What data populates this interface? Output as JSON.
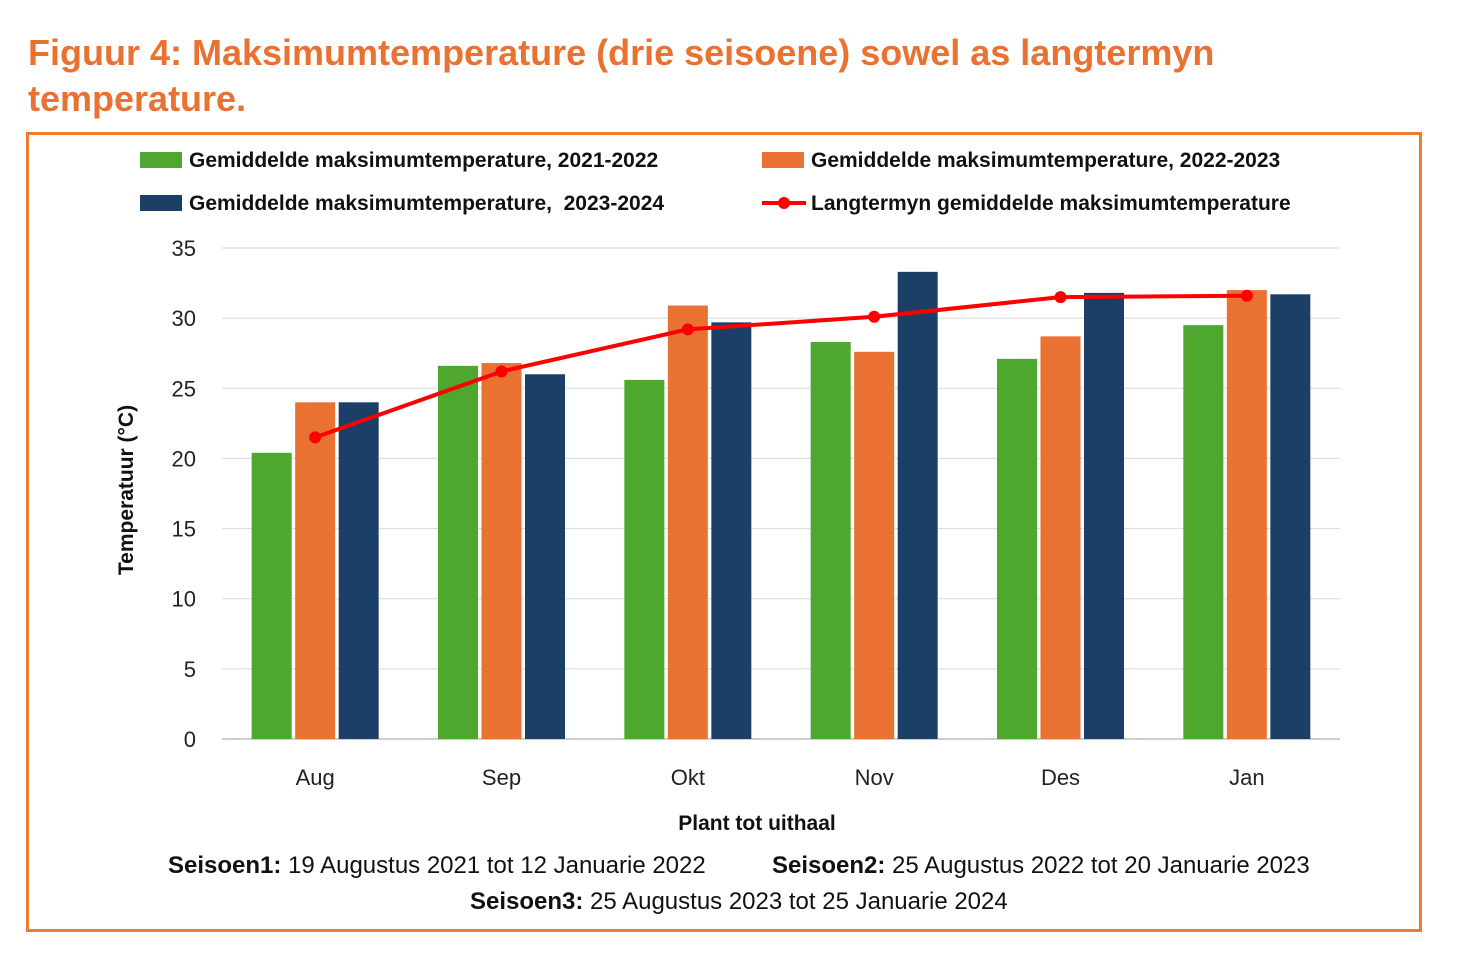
{
  "figure": {
    "title": "Figuur 4: Maksimumtemperature (drie seisoene) sowel as langtermyn temperature."
  },
  "chart_data": {
    "type": "bar",
    "categories": [
      "Aug",
      "Sep",
      "Okt",
      "Nov",
      "Des",
      "Jan"
    ],
    "series": [
      {
        "name": "Gemiddelde maksimumtemperature, 2021-2022",
        "kind": "bar",
        "color": "#4ea72e",
        "values": [
          20.4,
          26.6,
          25.6,
          28.3,
          27.1,
          29.5
        ]
      },
      {
        "name": "Gemiddelde maksimumtemperature, 2022-2023",
        "kind": "bar",
        "color": "#e97132",
        "values": [
          24.0,
          26.8,
          30.9,
          27.6,
          28.7,
          32.0
        ]
      },
      {
        "name": "Gemiddelde maksimumtemperature,  2023-2024",
        "kind": "bar",
        "color": "#1b3f66",
        "values": [
          24.0,
          26.0,
          29.7,
          33.3,
          31.8,
          31.7
        ]
      },
      {
        "name": "Langtermyn gemiddelde maksimumtemperature",
        "kind": "line",
        "color": "#ff0000",
        "values": [
          21.5,
          26.2,
          29.2,
          30.1,
          31.5,
          31.6
        ]
      }
    ],
    "ylabel": "Temperatuur (°C)",
    "xlabel": "Plant tot uithaal",
    "ylim": [
      0,
      35
    ],
    "yticks": [
      0,
      5,
      10,
      15,
      20,
      25,
      30,
      35
    ],
    "grid": true,
    "legend_position": "top"
  },
  "seasons": [
    {
      "label": "Seisoen1:",
      "text": " 19 Augustus 2021 tot 12 Januarie 2022"
    },
    {
      "label": "Seisoen2:",
      "text": " 25 Augustus 2022 tot 20 Januarie 2023"
    },
    {
      "label": "Seisoen3:",
      "text": " 25 Augustus 2023 tot 25 Januarie 2024"
    }
  ]
}
